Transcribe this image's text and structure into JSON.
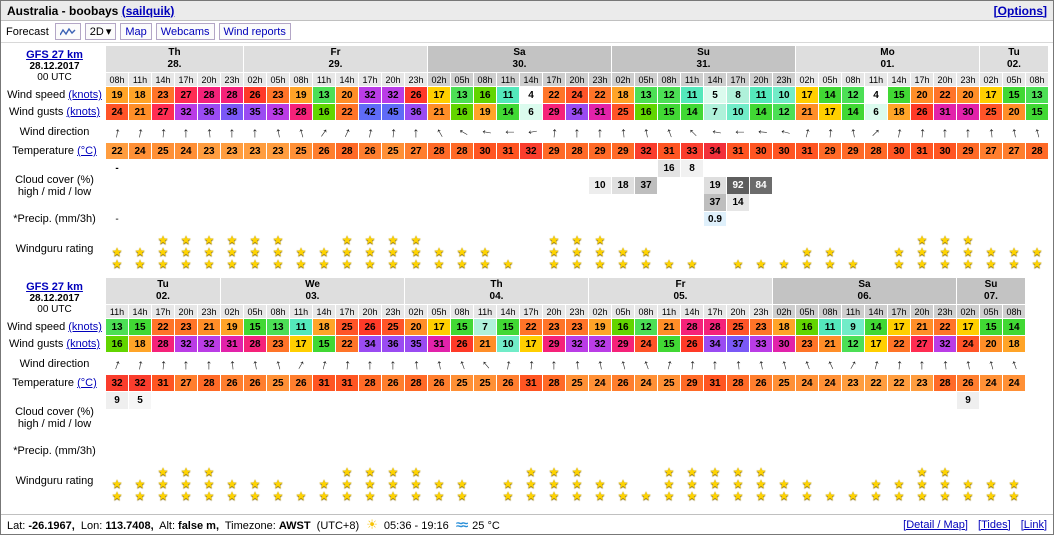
{
  "header": {
    "title": "Australia - boobays",
    "author_link": "(sailquik)",
    "options_label": "[Options]"
  },
  "tabs": {
    "forecast": "Forecast",
    "view2d": "2D",
    "map": "Map",
    "webcams": "Webcams",
    "wind_reports": "Wind reports"
  },
  "icons": {
    "dropdown": "▾",
    "sun": "☀",
    "waves": "≈≈",
    "star": "★"
  },
  "row_labels": {
    "wind_speed": "Wind speed",
    "wind_speed_unit": "(knots)",
    "wind_gusts": "Wind gusts",
    "wind_gusts_unit": "(knots)",
    "wind_direction": "Wind direction",
    "temperature": "Temperature",
    "temperature_unit": "(°C)",
    "cloud_line1": "Cloud cover (%)",
    "cloud_line2": "high / mid / low",
    "precip": "*Precip. (mm/3h)",
    "rating": "Windguru rating"
  },
  "blocks": [
    {
      "model": "GFS 27 km",
      "init_date": "28.12.2017",
      "init_time": "00 UTC",
      "day_groups": [
        {
          "label": "Th",
          "date": "28.",
          "span": 6,
          "weekend": false
        },
        {
          "label": "Fr",
          "date": "29.",
          "span": 8,
          "weekend": false
        },
        {
          "label": "Sa",
          "date": "30.",
          "span": 8,
          "weekend": true
        },
        {
          "label": "Su",
          "date": "31.",
          "span": 8,
          "weekend": true
        },
        {
          "label": "Mo",
          "date": "01.",
          "span": 8,
          "weekend": false
        },
        {
          "label": "Tu",
          "date": "02.",
          "span": 3,
          "weekend": false
        }
      ],
      "hours": [
        "08h",
        "11h",
        "14h",
        "17h",
        "20h",
        "23h",
        "02h",
        "05h",
        "08h",
        "11h",
        "14h",
        "17h",
        "20h",
        "23h",
        "02h",
        "05h",
        "08h",
        "11h",
        "14h",
        "17h",
        "20h",
        "23h",
        "02h",
        "05h",
        "08h",
        "11h",
        "14h",
        "17h",
        "20h",
        "23h",
        "02h",
        "05h",
        "08h",
        "11h",
        "14h",
        "17h",
        "20h",
        "23h",
        "02h",
        "05h",
        "08h"
      ],
      "wind_speed": [
        19,
        18,
        23,
        27,
        28,
        28,
        26,
        23,
        19,
        13,
        20,
        32,
        32,
        26,
        17,
        13,
        16,
        11,
        4,
        22,
        24,
        22,
        18,
        13,
        12,
        11,
        5,
        8,
        11,
        10,
        17,
        14,
        12,
        4,
        15,
        20,
        22,
        20,
        17,
        15,
        13
      ],
      "wind_gusts": [
        24,
        21,
        27,
        32,
        36,
        38,
        35,
        33,
        28,
        16,
        22,
        42,
        45,
        36,
        21,
        16,
        19,
        14,
        6,
        29,
        34,
        31,
        25,
        16,
        15,
        14,
        7,
        10,
        14,
        12,
        21,
        17,
        14,
        6,
        18,
        26,
        31,
        30,
        25,
        20,
        15
      ],
      "wind_dir_deg": [
        10,
        10,
        5,
        0,
        355,
        0,
        0,
        350,
        345,
        35,
        25,
        10,
        5,
        0,
        330,
        300,
        280,
        270,
        260,
        5,
        0,
        0,
        355,
        350,
        340,
        315,
        280,
        270,
        275,
        285,
        15,
        5,
        350,
        45,
        10,
        5,
        0,
        0,
        355,
        350,
        345
      ],
      "temperature": [
        22,
        24,
        25,
        24,
        23,
        23,
        23,
        23,
        25,
        26,
        28,
        26,
        25,
        27,
        28,
        28,
        30,
        31,
        32,
        29,
        28,
        29,
        29,
        32,
        31,
        33,
        34,
        31,
        30,
        30,
        31,
        29,
        29,
        28,
        30,
        31,
        30,
        29,
        27,
        27,
        28
      ],
      "cloud_high": {
        "0": "-",
        "24": 16,
        "25": 8
      },
      "cloud_mid": {
        "21": 10,
        "22": 18,
        "23": 37,
        "26": 19,
        "27": 92,
        "28": 84
      },
      "cloud_low": {
        "26": 37,
        "27": 14
      },
      "precip": {
        "0": "-",
        "26": "0.9"
      },
      "rating": [
        2,
        2,
        3,
        3,
        3,
        3,
        3,
        3,
        2,
        2,
        3,
        3,
        3,
        3,
        2,
        2,
        2,
        1,
        0,
        3,
        3,
        3,
        2,
        2,
        1,
        1,
        0,
        1,
        1,
        1,
        2,
        2,
        1,
        0,
        2,
        3,
        3,
        3,
        2,
        2,
        2
      ]
    },
    {
      "model": "GFS 27 km",
      "init_date": "28.12.2017",
      "init_time": "00 UTC",
      "day_groups": [
        {
          "label": "Tu",
          "date": "02.",
          "span": 5,
          "weekend": false
        },
        {
          "label": "We",
          "date": "03.",
          "span": 8,
          "weekend": false
        },
        {
          "label": "Th",
          "date": "04.",
          "span": 8,
          "weekend": false
        },
        {
          "label": "Fr",
          "date": "05.",
          "span": 8,
          "weekend": false
        },
        {
          "label": "Sa",
          "date": "06.",
          "span": 8,
          "weekend": true
        },
        {
          "label": "Su",
          "date": "07.",
          "span": 3,
          "weekend": true
        }
      ],
      "hours": [
        "11h",
        "14h",
        "17h",
        "20h",
        "23h",
        "02h",
        "05h",
        "08h",
        "11h",
        "14h",
        "17h",
        "20h",
        "23h",
        "02h",
        "05h",
        "08h",
        "11h",
        "14h",
        "17h",
        "20h",
        "23h",
        "02h",
        "05h",
        "08h",
        "11h",
        "14h",
        "17h",
        "20h",
        "23h",
        "02h",
        "05h",
        "08h",
        "11h",
        "14h",
        "17h",
        "20h",
        "23h",
        "02h",
        "05h",
        "08h"
      ],
      "wind_speed": [
        13,
        15,
        22,
        23,
        21,
        19,
        15,
        13,
        11,
        18,
        25,
        26,
        25,
        20,
        17,
        15,
        7,
        15,
        22,
        23,
        23,
        19,
        16,
        12,
        21,
        28,
        28,
        25,
        23,
        18,
        16,
        11,
        9,
        14,
        17,
        21,
        22,
        17,
        15,
        14
      ],
      "wind_gusts": [
        16,
        18,
        28,
        32,
        32,
        31,
        28,
        23,
        17,
        15,
        22,
        34,
        36,
        35,
        31,
        26,
        21,
        10,
        17,
        29,
        32,
        32,
        29,
        24,
        15,
        26,
        34,
        37,
        33,
        30,
        23,
        21,
        12,
        17,
        22,
        27,
        32,
        24,
        20,
        18
      ],
      "wind_dir_deg": [
        20,
        10,
        5,
        0,
        0,
        355,
        350,
        345,
        30,
        15,
        5,
        0,
        0,
        355,
        350,
        340,
        320,
        10,
        5,
        0,
        355,
        350,
        345,
        340,
        15,
        5,
        0,
        355,
        350,
        345,
        340,
        335,
        30,
        15,
        5,
        0,
        355,
        350,
        345,
        340
      ],
      "temperature": [
        32,
        32,
        31,
        27,
        28,
        26,
        26,
        25,
        26,
        31,
        31,
        28,
        26,
        28,
        26,
        25,
        25,
        26,
        31,
        28,
        25,
        24,
        26,
        24,
        25,
        29,
        31,
        28,
        26,
        25,
        24,
        24,
        23,
        22,
        22,
        23,
        28,
        26,
        24,
        24
      ],
      "cloud_high": {
        "0": 9,
        "1": 5,
        "37": 9
      },
      "cloud_mid": {},
      "cloud_low": {},
      "precip": {},
      "rating": [
        2,
        2,
        3,
        3,
        3,
        2,
        2,
        2,
        1,
        2,
        3,
        3,
        3,
        3,
        2,
        2,
        0,
        2,
        3,
        3,
        3,
        2,
        2,
        1,
        3,
        3,
        3,
        3,
        3,
        2,
        2,
        1,
        1,
        2,
        2,
        3,
        3,
        2,
        2,
        2
      ]
    }
  ],
  "footer": {
    "lat_label": "Lat:",
    "lat": "-26.1967,",
    "lon_label": "Lon:",
    "lon": "113.7408,",
    "alt_label": "Alt:",
    "alt": "false m,",
    "tz_label": "Timezone:",
    "tz": "AWST",
    "tz_offset": "(UTC+8)",
    "sun_times": "05:36 - 19:16",
    "sea_temp": "25 °C",
    "links": [
      "[Detail / Map]",
      "[Tides]",
      "[Link]"
    ]
  }
}
